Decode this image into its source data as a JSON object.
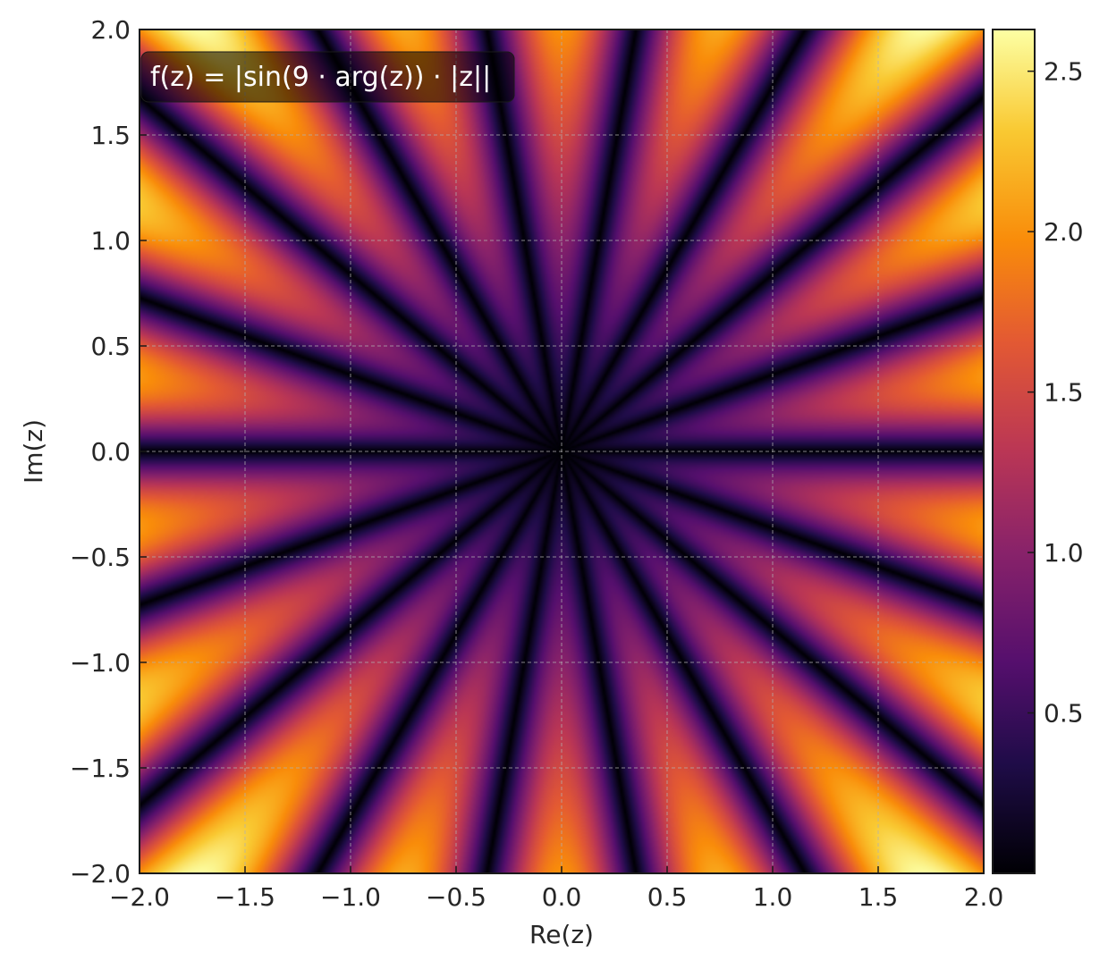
{
  "chart_data": {
    "type": "heatmap",
    "title": "",
    "xlabel": "Re(z)",
    "ylabel": "Im(z)",
    "xlim": [
      -2.0,
      2.0
    ],
    "ylim": [
      -2.0,
      2.0
    ],
    "xticks": [
      "−2.0",
      "−1.5",
      "−1.0",
      "−0.5",
      "0.0",
      "0.5",
      "1.0",
      "1.5",
      "2.0"
    ],
    "xtick_values": [
      -2.0,
      -1.5,
      -1.0,
      -0.5,
      0.0,
      0.5,
      1.0,
      1.5,
      2.0
    ],
    "yticks": [
      "−2.0",
      "−1.5",
      "−1.0",
      "−0.5",
      "0.0",
      "0.5",
      "1.0",
      "1.5",
      "2.0"
    ],
    "ytick_values": [
      -2.0,
      -1.5,
      -1.0,
      -0.5,
      0.0,
      0.5,
      1.0,
      1.5,
      2.0
    ],
    "grid": true,
    "function": "f(z) = |sin(9·arg(z))·|z||",
    "frequency": 9,
    "annotation": "f(z) = |sin(9 · arg(z)) · |z||",
    "colormap": "inferno",
    "colorbar": {
      "vmin": 0.0,
      "vmax": 2.63,
      "ticks": [
        "0.5",
        "1.0",
        "1.5",
        "2.0",
        "2.5"
      ],
      "tick_values": [
        0.5,
        1.0,
        1.5,
        2.0,
        2.5
      ]
    }
  }
}
